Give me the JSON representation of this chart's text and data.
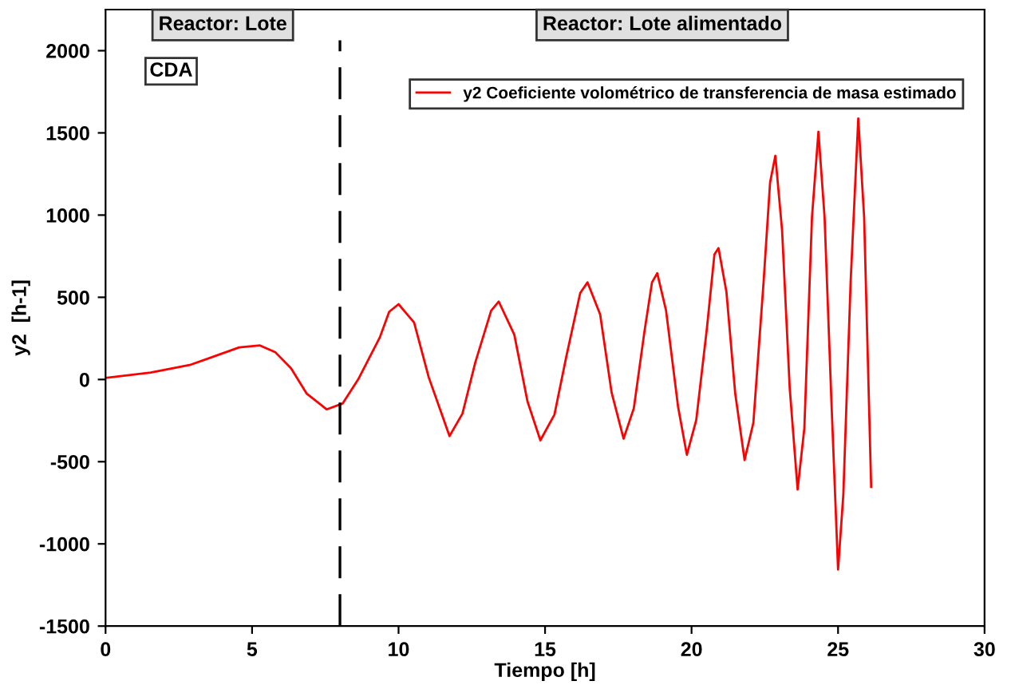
{
  "chart_data": {
    "type": "line",
    "xlabel": "Tiempo [h]",
    "ylabel": "y2  [h-1]",
    "xlim": [
      0,
      30
    ],
    "xticks": [
      0,
      5,
      10,
      15,
      20,
      25,
      30
    ],
    "ylim": [
      -1500,
      2250
    ],
    "yticks": [
      -1500,
      -1000,
      -500,
      0,
      500,
      1000,
      1500,
      2000
    ],
    "grid": false,
    "legend": "top right",
    "marker": "none",
    "line_style": "solid",
    "annotations": [
      "Reactor: Lote",
      "Reactor: Lote alimentado",
      "CDA"
    ],
    "ref_lines": [
      {
        "axis": "x",
        "value": 8,
        "color": "#000000",
        "line_style": "dashed"
      }
    ],
    "series": [
      {
        "name": "y2 Coeficiente volométrico de transferencia de masa estimado",
        "color": "#ff0000",
        "x": [
          0,
          1.54,
          2.87,
          4.56,
          5.27,
          5.8,
          6.33,
          6.86,
          7.55,
          8.09,
          8.62,
          9.36,
          9.68,
          10.0,
          10.53,
          11.03,
          11.74,
          12.18,
          12.62,
          13.16,
          13.42,
          13.95,
          14.4,
          14.84,
          15.32,
          15.73,
          16.2,
          16.45,
          16.88,
          17.27,
          17.68,
          18.03,
          18.39,
          18.65,
          18.83,
          19.13,
          19.54,
          19.84,
          20.16,
          20.52,
          20.78,
          20.92,
          21.19,
          21.49,
          21.81,
          22.11,
          22.46,
          22.68,
          22.86,
          23.09,
          23.35,
          23.62,
          23.85,
          24.11,
          24.33,
          24.54,
          24.77,
          25.0,
          25.18,
          25.43,
          25.69,
          25.89,
          26.13
        ],
        "values": [
          10,
          42,
          88,
          195,
          207,
          165,
          68,
          -85,
          -182,
          -146,
          0,
          256,
          412,
          458,
          347,
          13,
          -344,
          -208,
          104,
          419,
          474,
          273,
          -133,
          -370,
          -214,
          143,
          526,
          591,
          396,
          -78,
          -360,
          -175,
          289,
          591,
          646,
          419,
          -166,
          -458,
          -247,
          305,
          760,
          799,
          533,
          -85,
          -490,
          -263,
          597,
          1198,
          1361,
          906,
          -52,
          -669,
          -295,
          987,
          1507,
          987,
          -117,
          -1156,
          -701,
          597,
          1588,
          987,
          -653
        ]
      }
    ]
  }
}
